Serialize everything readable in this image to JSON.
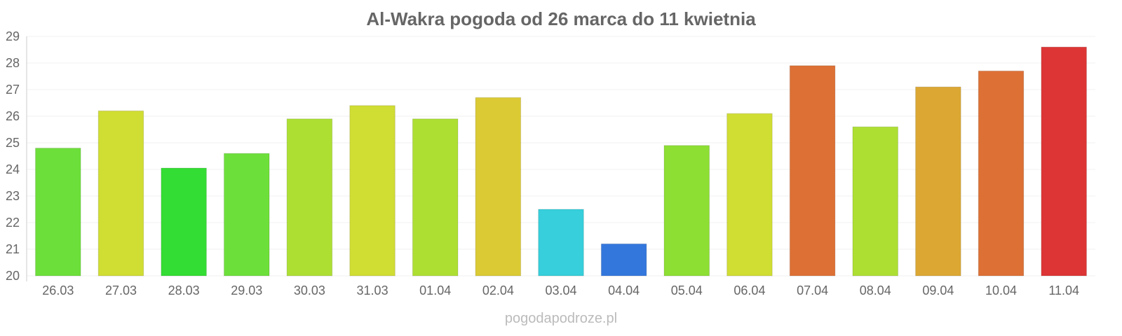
{
  "chart_data": {
    "type": "bar",
    "title": "Al-Wakra pogoda od 26 marca do 11 kwietnia",
    "xlabel": "",
    "ylabel": "",
    "ylim": [
      20,
      29
    ],
    "yticks": [
      20,
      21,
      22,
      23,
      24,
      25,
      26,
      27,
      28,
      29
    ],
    "grid": true,
    "legend": "none",
    "categories": [
      "26.03",
      "27.03",
      "28.03",
      "29.03",
      "30.03",
      "31.03",
      "01.04",
      "02.04",
      "03.04",
      "04.04",
      "05.04",
      "06.04",
      "07.04",
      "08.04",
      "09.04",
      "10.04",
      "11.04"
    ],
    "values": [
      24.8,
      26.2,
      24.05,
      24.6,
      25.9,
      26.4,
      25.9,
      26.7,
      22.5,
      21.2,
      24.9,
      26.1,
      27.9,
      25.6,
      27.1,
      27.7,
      28.6
    ],
    "colors": [
      "#6ddf3a",
      "#d0dd33",
      "#33dd33",
      "#6ddf3a",
      "#addf33",
      "#d0dd33",
      "#addf33",
      "#dbca33",
      "#36cfdb",
      "#3377dd",
      "#8ddf33",
      "#d0dd33",
      "#dd7035",
      "#addf33",
      "#dca833",
      "#dd7035",
      "#dd3535"
    ],
    "credit": "pogodapodroze.pl"
  }
}
